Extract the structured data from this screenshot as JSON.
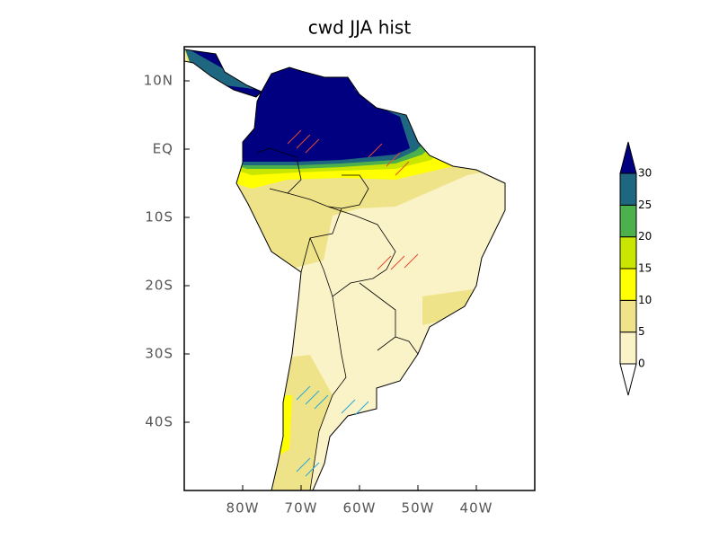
{
  "title": "cwd JJA hist",
  "lonlim": [
    -90,
    -30
  ],
  "latlim": [
    -50,
    15
  ],
  "lon_ticks": [
    {
      "value": -80,
      "label": "80W"
    },
    {
      "value": -70,
      "label": "70W"
    },
    {
      "value": -60,
      "label": "60W"
    },
    {
      "value": -50,
      "label": "50W"
    },
    {
      "value": -40,
      "label": "40W"
    }
  ],
  "lat_ticks": [
    {
      "value": 10,
      "label": "10N"
    },
    {
      "value": 0,
      "label": "EQ"
    },
    {
      "value": -10,
      "label": "10S"
    },
    {
      "value": -20,
      "label": "20S"
    },
    {
      "value": -30,
      "label": "30S"
    },
    {
      "value": -40,
      "label": "40S"
    }
  ],
  "colorbar": {
    "levels": [
      0,
      5,
      10,
      15,
      20,
      25,
      30
    ],
    "colors": [
      "#fbf3c8",
      "#efe38a",
      "#ffff00",
      "#c8e600",
      "#4cb04c",
      "#1f6680"
    ],
    "under_color": "#ffffff",
    "over_color": "#000080"
  }
}
